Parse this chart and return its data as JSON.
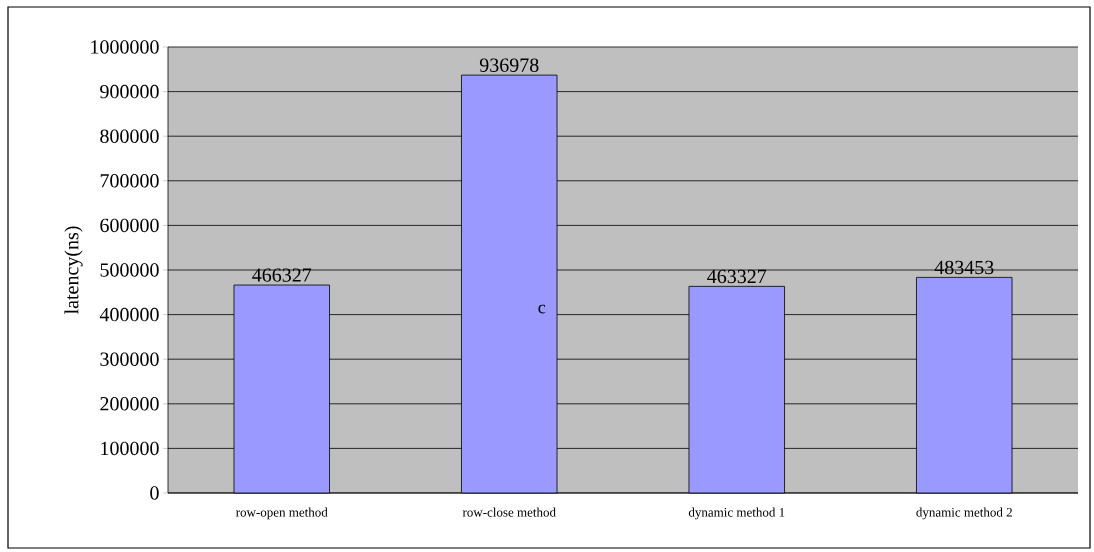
{
  "chart_data": {
    "type": "bar",
    "ylabel": "latency(ns)",
    "categories": [
      "row-open method",
      "row-close method",
      "dynamic method 1",
      "dynamic method 2"
    ],
    "values": [
      466327,
      936978,
      463327,
      483453
    ],
    "color": "#9999ff",
    "ylim": [
      0,
      1000000
    ],
    "yticks": [
      0,
      100000,
      200000,
      300000,
      400000,
      500000,
      600000,
      700000,
      800000,
      900000,
      1000000
    ],
    "grid": "y",
    "data_labels": true,
    "annotations": [
      "c"
    ]
  }
}
